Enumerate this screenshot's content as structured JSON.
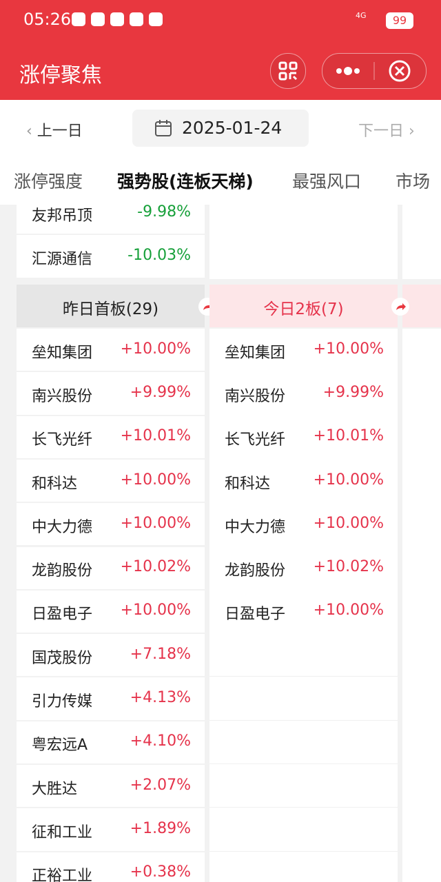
{
  "status_bar": {
    "time": "05:26",
    "network": "4G",
    "battery": "99"
  },
  "header": {
    "title": "涨停聚焦"
  },
  "date_nav": {
    "prev": "上一日",
    "date": "2025-01-24",
    "next": "下一日"
  },
  "tabs": [
    "涨停强度",
    "强势股(连板天梯)",
    "最强风口",
    "市场"
  ],
  "top_rows": [
    {
      "name": "友邦吊顶",
      "change": "-9.98%"
    },
    {
      "name": "汇源通信",
      "change": "-10.03%"
    }
  ],
  "columns": [
    {
      "header": "昨日首板(29)",
      "rows": [
        {
          "name": "垒知集团",
          "change": "+10.00%"
        },
        {
          "name": "南兴股份",
          "change": "+9.99%"
        },
        {
          "name": "长飞光纤",
          "change": "+10.01%"
        },
        {
          "name": "和科达",
          "change": "+10.00%"
        },
        {
          "name": "中大力德",
          "change": "+10.00%"
        },
        {
          "name": "龙韵股份",
          "change": "+10.02%"
        },
        {
          "name": "日盈电子",
          "change": "+10.00%"
        },
        {
          "name": "国茂股份",
          "change": "+7.18%"
        },
        {
          "name": "引力传媒",
          "change": "+4.13%"
        },
        {
          "name": "粤宏远A",
          "change": "+4.10%"
        },
        {
          "name": "大胜达",
          "change": "+2.07%"
        },
        {
          "name": "征和工业",
          "change": "+1.89%"
        },
        {
          "name": "正裕工业",
          "change": "+0.38%"
        }
      ]
    },
    {
      "header": "今日2板(7)",
      "rows": [
        {
          "name": "垒知集团",
          "change": "+10.00%"
        },
        {
          "name": "南兴股份",
          "change": "+9.99%"
        },
        {
          "name": "长飞光纤",
          "change": "+10.01%"
        },
        {
          "name": "和科达",
          "change": "+10.00%"
        },
        {
          "name": "中大力德",
          "change": "+10.00%"
        },
        {
          "name": "龙韵股份",
          "change": "+10.02%"
        },
        {
          "name": "日盈电子",
          "change": "+10.00%"
        }
      ]
    }
  ]
}
